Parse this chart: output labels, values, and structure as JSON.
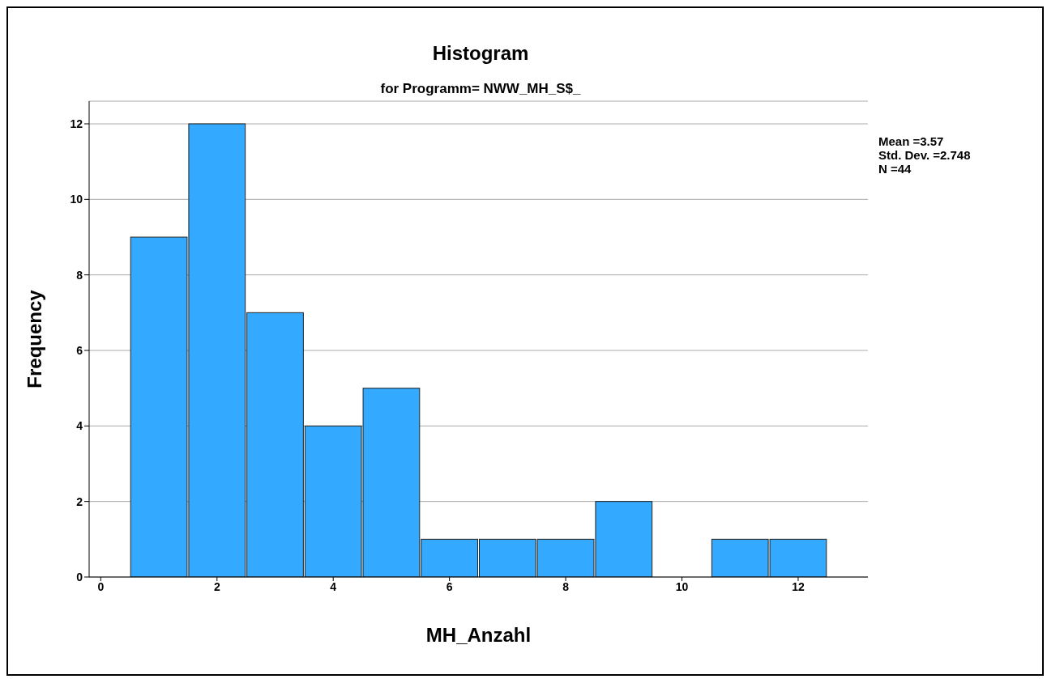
{
  "chart_data": {
    "type": "histogram",
    "title": "Histogram",
    "subtitle": "for Programm= NWW_MH_S$_",
    "xlabel": "MH_Anzahl",
    "ylabel": "Frequency",
    "bins": [
      0.5,
      1.5,
      2.5,
      3.5,
      4.5,
      5.5,
      6.5,
      7.5,
      8.5,
      9.5,
      10.5,
      11.5,
      12.5
    ],
    "values": [
      9,
      12,
      7,
      4,
      5,
      1,
      1,
      1,
      2,
      0,
      1,
      1
    ],
    "color": "#33aaff",
    "xlim": [
      -0.2,
      13.2
    ],
    "xticks": [
      0,
      2,
      4,
      6,
      8,
      10,
      12
    ],
    "ylim": [
      0,
      12.6
    ],
    "yticks": [
      0,
      2,
      4,
      6,
      8,
      10,
      12
    ],
    "grid": "y",
    "annotations": [
      "Mean =3.57",
      "Std. Dev. =2.748",
      "N =44"
    ]
  }
}
